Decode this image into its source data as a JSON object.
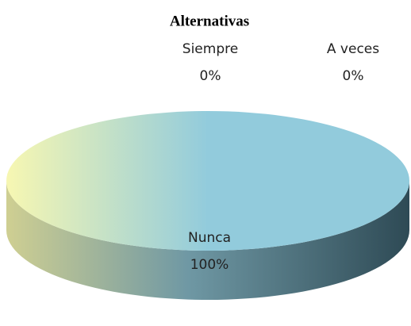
{
  "chart_data": {
    "type": "pie",
    "title": "Alternativas",
    "categories": [
      "Siempre",
      "A veces",
      "Nunca"
    ],
    "values": [
      0,
      0,
      100
    ],
    "value_labels": [
      "0%",
      "0%",
      "100%"
    ]
  }
}
